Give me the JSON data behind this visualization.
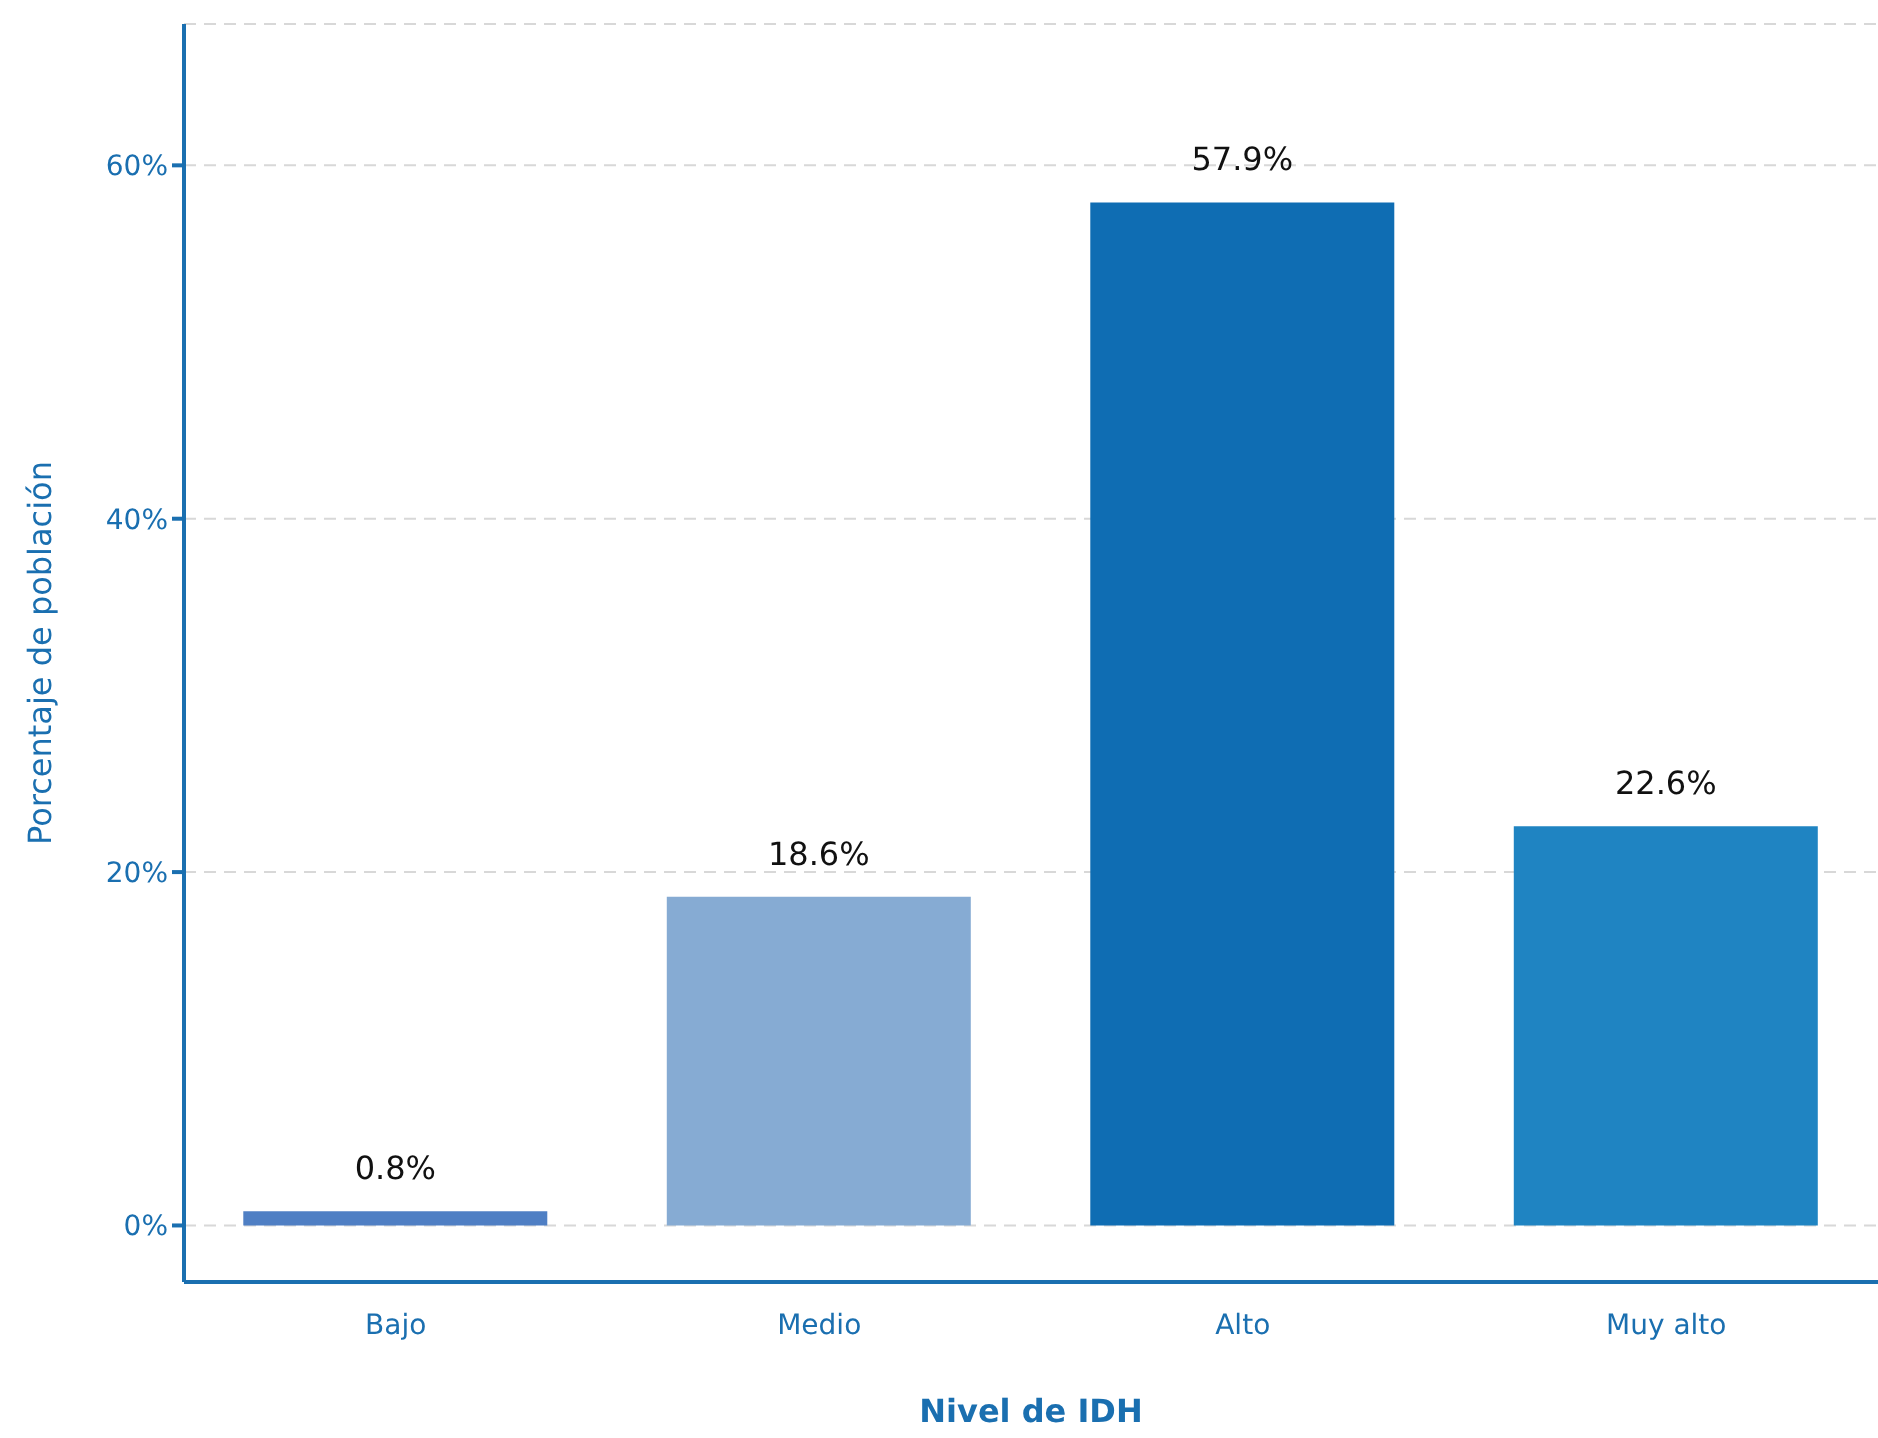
{
  "chart_data": {
    "type": "bar",
    "categories": [
      "Bajo",
      "Medio",
      "Alto",
      "Muy alto"
    ],
    "values": [
      0.8,
      18.6,
      57.9,
      22.6
    ],
    "colors": [
      "#4f7fc4",
      "#86abd3",
      "#0f6db3",
      "#1f84c2"
    ],
    "value_labels": [
      "0.8%",
      "18.6%",
      "57.9%",
      "22.6%"
    ],
    "xlabel": "Nivel de IDH",
    "ylabel": "Porcentaje de población",
    "ylim": [
      -3.2,
      68
    ],
    "yticks": [
      {
        "value": 0,
        "label": "0%"
      },
      {
        "value": 20,
        "label": "20%"
      },
      {
        "value": 40,
        "label": "40%"
      },
      {
        "value": 60,
        "label": "60%"
      }
    ],
    "grid": "y",
    "legend": false
  }
}
